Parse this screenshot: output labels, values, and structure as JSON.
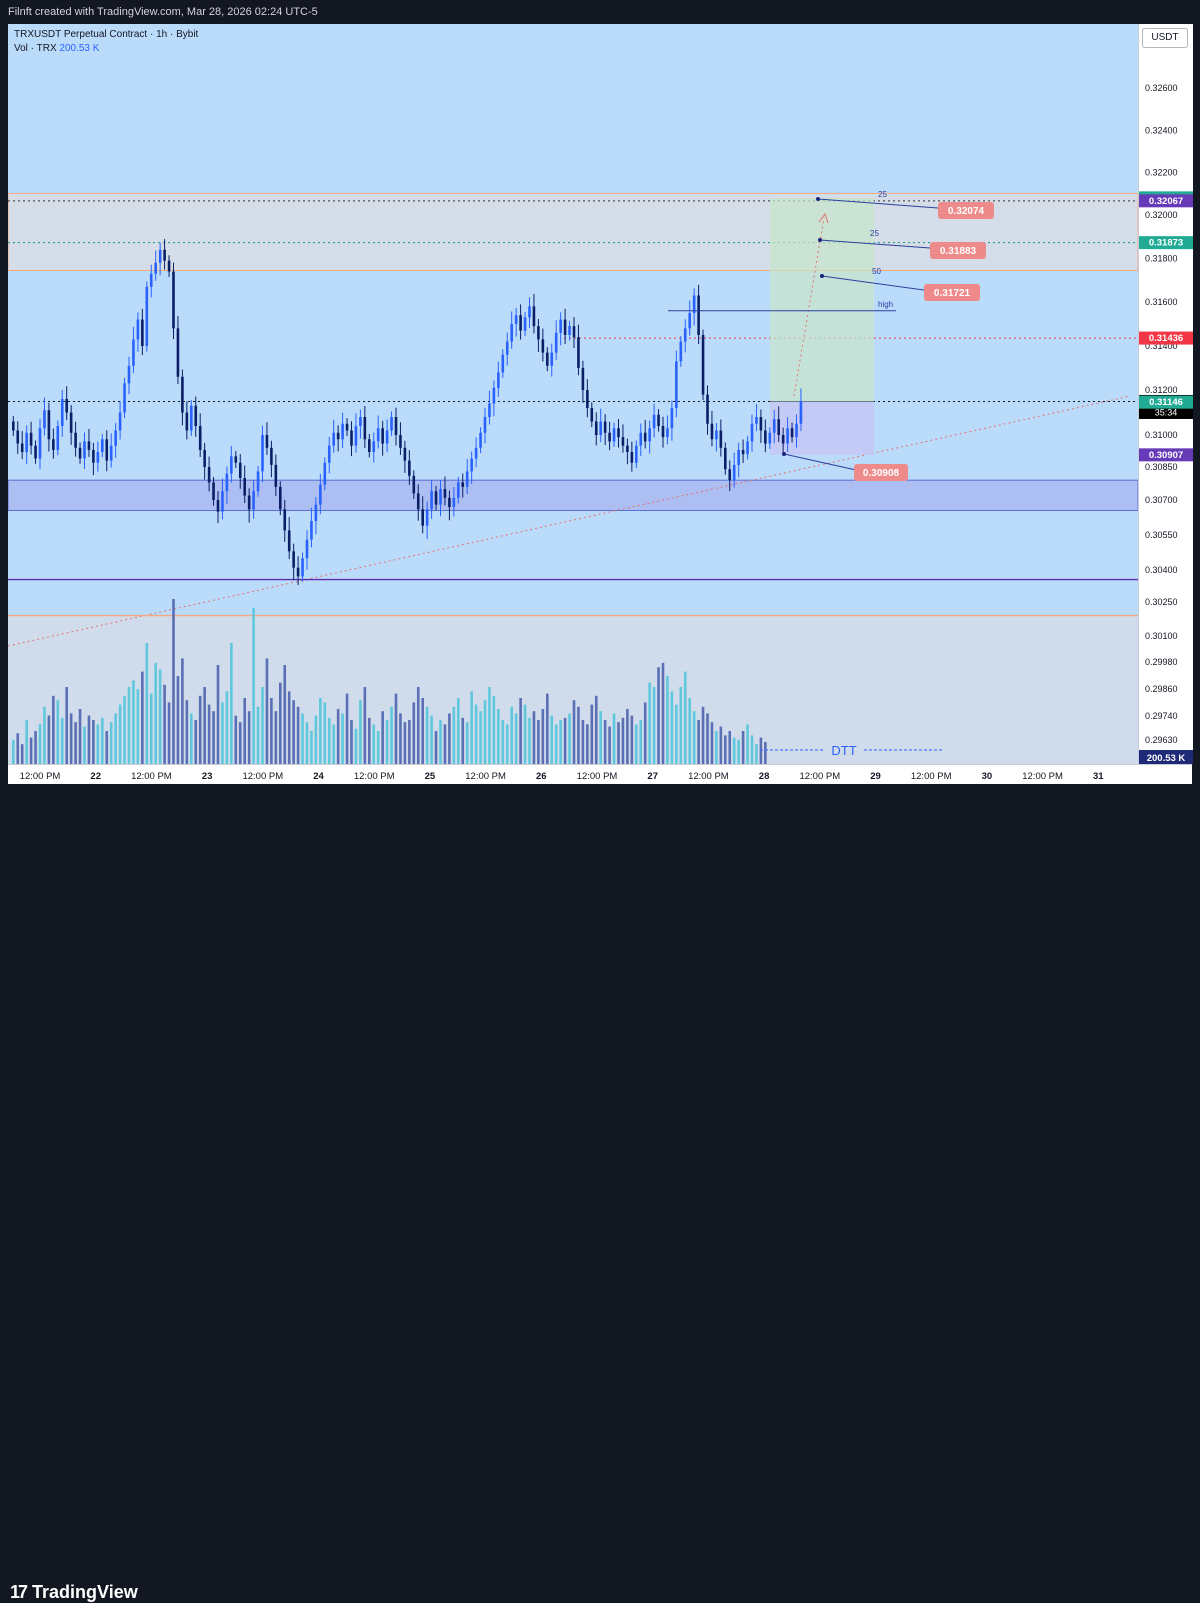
{
  "header": {
    "caption": "Filnft created with TradingView.com, Mar 28, 2026 02:24 UTC-5"
  },
  "legend": {
    "symbol": "TRXUSDT Perpetual Contract · 1h · Bybit",
    "vol_label": "Vol · TRX",
    "vol_value": "200.53 K"
  },
  "currency_button": "USDT",
  "footer": {
    "brand": "TradingView"
  },
  "colors": {
    "up": "#2962ff",
    "down": "#0b1f66",
    "vol_up": "#5fc8dc",
    "vol_down": "#5b6fb4",
    "zone": "#d8dde4",
    "target": "#c8e6c9",
    "stop": "#c5c8f5"
  },
  "chart_data": {
    "type": "candlestick",
    "symbol": "TRXUSDT",
    "interval": "1h",
    "y_ticks": [
      "0.32600",
      "0.32400",
      "0.32200",
      "0.32000",
      "0.31800",
      "0.31600",
      "0.31400",
      "0.31200",
      "0.31000",
      "0.30850",
      "0.30700",
      "0.30550",
      "0.30400",
      "0.30250",
      "0.30100",
      "0.29980",
      "0.29860",
      "0.29740",
      "0.29630"
    ],
    "x_ticks": [
      "12:00 PM",
      "22",
      "12:00 PM",
      "23",
      "12:00 PM",
      "24",
      "12:00 PM",
      "25",
      "12:00 PM",
      "26",
      "12:00 PM",
      "27",
      "12:00 PM",
      "28",
      "12:00 PM",
      "29",
      "12:00 PM",
      "30",
      "12:00 PM",
      "31"
    ],
    "price_labels": [
      {
        "text": "0.32081",
        "price": 0.32081,
        "color": "#22ab94"
      },
      {
        "text": "0.32067",
        "price": 0.32067,
        "color": "#673ab7"
      },
      {
        "text": "0.31873",
        "price": 0.31873,
        "color": "#22ab94"
      },
      {
        "text": "0.31436",
        "price": 0.31436,
        "color": "#f23645"
      },
      {
        "text": "0.31149",
        "price": 0.31149,
        "color": "#000000",
        "countdown": "35:34"
      },
      {
        "text": "0.31146",
        "price": 0.31146,
        "color": "#22ab94"
      },
      {
        "text": "0.30907",
        "price": 0.30907,
        "color": "#673ab7"
      }
    ],
    "volume_label": "200.53 K",
    "zones": [
      {
        "name": "supply",
        "from": 0.31745,
        "to": 0.32102
      },
      {
        "name": "demand",
        "from": 0.30655,
        "to": 0.3079
      }
    ],
    "horizontal_lines": [
      {
        "name": "upper",
        "price": 0.32067,
        "style": "dotted",
        "color": "#333333"
      },
      {
        "name": "green",
        "price": 0.31873,
        "style": "dotted",
        "color": "#089981"
      },
      {
        "name": "red",
        "price": 0.31436,
        "style": "dotted",
        "color": "#f23645"
      },
      {
        "name": "current",
        "price": 0.31149,
        "style": "dotted",
        "color": "#131722"
      },
      {
        "name": "purple",
        "price": 0.30355,
        "style": "solid",
        "color": "#5b2db3"
      },
      {
        "name": "orange",
        "price": 0.3019,
        "style": "solid",
        "color": "#f5a97f"
      }
    ],
    "callouts": [
      {
        "text": "0.32074",
        "price": 0.32074
      },
      {
        "text": "0.31883",
        "price": 0.31883
      },
      {
        "text": "0.31721",
        "price": 0.31721
      },
      {
        "text": "0.30908",
        "price": 0.30908
      }
    ],
    "fib_labels": [
      "25",
      "25",
      "50",
      "high"
    ],
    "annotation": "DTT",
    "closes": [
      0.3102,
      0.3096,
      0.3092,
      0.3101,
      0.3095,
      0.3089,
      0.3103,
      0.3111,
      0.3098,
      0.3093,
      0.3104,
      0.3116,
      0.311,
      0.3101,
      0.3094,
      0.3089,
      0.3097,
      0.3093,
      0.3087,
      0.3092,
      0.3098,
      0.3088,
      0.3095,
      0.3102,
      0.311,
      0.3123,
      0.3131,
      0.3143,
      0.3152,
      0.314,
      0.3167,
      0.3173,
      0.3178,
      0.3184,
      0.3179,
      0.3174,
      0.3148,
      0.3126,
      0.311,
      0.3102,
      0.3113,
      0.3104,
      0.3093,
      0.3085,
      0.3078,
      0.307,
      0.3065,
      0.3074,
      0.3082,
      0.309,
      0.3087,
      0.308,
      0.3072,
      0.3066,
      0.3074,
      0.3083,
      0.31,
      0.3094,
      0.3086,
      0.3076,
      0.3066,
      0.3057,
      0.3048,
      0.3041,
      0.3037,
      0.3045,
      0.3053,
      0.3061,
      0.3068,
      0.3077,
      0.3087,
      0.3095,
      0.3101,
      0.3098,
      0.3105,
      0.3102,
      0.3095,
      0.3104,
      0.3108,
      0.3098,
      0.3092,
      0.3097,
      0.3103,
      0.3096,
      0.3102,
      0.3108,
      0.31,
      0.3094,
      0.3088,
      0.3081,
      0.3073,
      0.3066,
      0.3059,
      0.3066,
      0.3074,
      0.3068,
      0.3075,
      0.3071,
      0.3067,
      0.3071,
      0.3078,
      0.3076,
      0.3083,
      0.3089,
      0.3094,
      0.3101,
      0.3108,
      0.3114,
      0.3121,
      0.3128,
      0.3136,
      0.3142,
      0.315,
      0.3154,
      0.3147,
      0.3153,
      0.3158,
      0.3149,
      0.3143,
      0.3137,
      0.3131,
      0.3137,
      0.3146,
      0.3152,
      0.3145,
      0.3149,
      0.3144,
      0.313,
      0.312,
      0.3112,
      0.3106,
      0.31,
      0.3106,
      0.3101,
      0.3097,
      0.3103,
      0.3099,
      0.3095,
      0.3092,
      0.3087,
      0.3095,
      0.3101,
      0.3097,
      0.3103,
      0.3109,
      0.3104,
      0.3099,
      0.3103,
      0.3112,
      0.3133,
      0.3142,
      0.3148,
      0.3155,
      0.3163,
      0.3145,
      0.3118,
      0.3105,
      0.3098,
      0.3102,
      0.3094,
      0.3084,
      0.3079,
      0.3086,
      0.3093,
      0.3091,
      0.3097,
      0.3105,
      0.3108,
      0.3102,
      0.3096,
      0.3101,
      0.3107,
      0.31,
      0.3096,
      0.3103,
      0.3099,
      0.3105,
      0.3115
    ],
    "volumes": [
      22,
      28,
      18,
      40,
      24,
      30,
      36,
      52,
      44,
      62,
      58,
      42,
      70,
      46,
      38,
      50,
      34,
      44,
      40,
      36,
      42,
      30,
      38,
      46,
      54,
      62,
      70,
      76,
      68,
      84,
      110,
      64,
      92,
      86,
      72,
      56,
      150,
      80,
      96,
      58,
      46,
      40,
      62,
      70,
      54,
      48,
      90,
      56,
      66,
      110,
      44,
      38,
      60,
      48,
      142,
      52,
      70,
      96,
      60,
      48,
      74,
      90,
      66,
      58,
      52,
      46,
      38,
      30,
      44,
      60,
      56,
      42,
      36,
      50,
      46,
      64,
      40,
      32,
      58,
      70,
      42,
      36,
      30,
      48,
      40,
      52,
      64,
      46,
      38,
      40,
      56,
      70,
      60,
      52,
      44,
      30,
      40,
      36,
      46,
      52,
      60,
      42,
      38,
      66,
      54,
      48,
      58,
      70,
      62,
      50,
      40,
      36,
      52,
      46,
      60,
      54,
      42,
      48,
      40,
      50,
      64,
      44,
      36,
      40,
      42,
      46,
      58,
      52,
      40,
      36,
      54,
      62,
      48,
      40,
      34,
      46,
      38,
      42,
      50,
      44,
      36,
      40,
      56,
      74,
      70,
      88,
      92,
      80,
      66,
      54,
      70,
      84,
      60,
      48,
      40,
      52,
      46,
      38,
      30,
      34,
      26,
      30,
      24,
      22,
      30,
      36,
      26,
      18,
      24,
      20
    ]
  }
}
